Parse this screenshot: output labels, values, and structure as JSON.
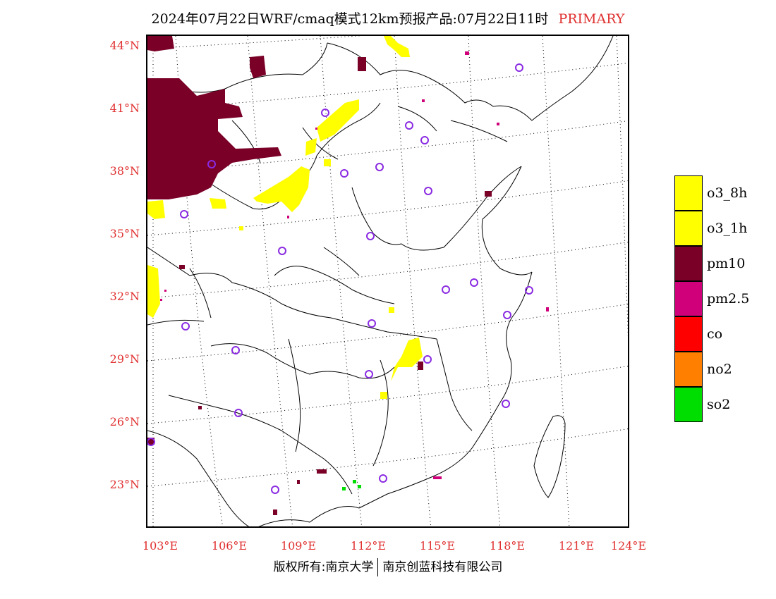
{
  "header": {
    "title": "2024年07月22日WRF/cmaq模式12km预报产品:07月22日11时",
    "tag": "PRIMARY"
  },
  "axes": {
    "lat_labels": [
      "44°N",
      "41°N",
      "38°N",
      "35°N",
      "32°N",
      "29°N",
      "26°N",
      "23°N"
    ],
    "lon_labels": [
      "103°E",
      "106°E",
      "109°E",
      "112°E",
      "115°E",
      "118°E",
      "121°E",
      "124°E"
    ]
  },
  "legend": {
    "items": [
      {
        "label": "o3_8h",
        "color": "#ffff00"
      },
      {
        "label": "o3_1h",
        "color": "#ffff00"
      },
      {
        "label": "pm10",
        "color": "#7a0028"
      },
      {
        "label": "pm2.5",
        "color": "#d0007a"
      },
      {
        "label": "co",
        "color": "#ff0000"
      },
      {
        "label": "no2",
        "color": "#ff7f00"
      },
      {
        "label": "so2",
        "color": "#00dd00"
      }
    ]
  },
  "colors": {
    "label_red": "#e03030",
    "station_circle": "#8a2be2",
    "pm10": "#7a0028",
    "o3": "#ffff00",
    "pm25": "#d0007a",
    "so2": "#00dd00"
  },
  "footer": {
    "left": "版权所有:南京大学",
    "right": "南京创蓝科技有限公司"
  }
}
